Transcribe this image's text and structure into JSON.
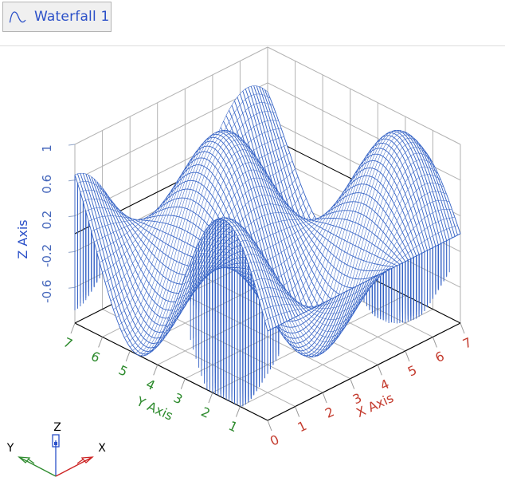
{
  "tab": {
    "label": "Waterfall 1",
    "icon": "sine-wave-icon"
  },
  "axes": {
    "x": {
      "title": "X Axis",
      "color": "#c43b2e",
      "tick_labels": [
        "0",
        "1",
        "2",
        "3",
        "4",
        "5",
        "6",
        "7"
      ],
      "tick_values": [
        0,
        1,
        2,
        3,
        4,
        5,
        6,
        7
      ]
    },
    "y": {
      "title": "Y Axis",
      "color": "#2e8b2e",
      "tick_labels": [
        "1",
        "2",
        "3",
        "4",
        "5",
        "6",
        "7"
      ],
      "tick_values": [
        1,
        2,
        3,
        4,
        5,
        6,
        7
      ]
    },
    "z": {
      "title": "Z Axis",
      "color": "#2b50c8",
      "tick_labels": [
        "1",
        "0.6",
        "0.2",
        "-0.2",
        "-0.6"
      ],
      "tick_values": [
        1,
        0.6,
        0.2,
        -0.2,
        -0.6
      ]
    }
  },
  "triad": {
    "x_label": "X",
    "y_label": "Y",
    "z_label": "Z",
    "x_color": "#cc2222",
    "y_color": "#2e8b2e",
    "z_color": "#2b50c8",
    "label_color": "#000000"
  },
  "colors": {
    "mesh": "#3462c5",
    "grid": "#b2b2b2",
    "frame": "#000000",
    "tick_line": "#9a9a9a",
    "z_tick_line": "#8fa3c8",
    "background": "#ffffff"
  },
  "chart_data": {
    "type": "area",
    "subtype": "3d-waterfall-surface",
    "title": "Waterfall 1",
    "surface_formula": "z = cos(x) * sin(y)",
    "x_range": [
      0,
      7
    ],
    "y_range": [
      0,
      7
    ],
    "z_range": [
      -1,
      1
    ],
    "slice_step": 0.1,
    "sample_step": 0.1,
    "x_ticks": [
      0,
      1,
      2,
      3,
      4,
      5,
      6,
      7
    ],
    "y_ticks": [
      1,
      2,
      3,
      4,
      5,
      6,
      7
    ],
    "z_ticks": [
      1,
      0.6,
      0.2,
      -0.2,
      -0.6
    ],
    "wall_grid_z_levels": [
      0.6,
      0.2,
      -0.2,
      -0.6
    ],
    "zero_plane_level": 0,
    "grid": "on",
    "legend": "none",
    "peaks": [
      {
        "x": 0,
        "y": 1.57,
        "z": 1
      },
      {
        "x": 3.14,
        "y": 4.71,
        "z": 1
      },
      {
        "x": 6.28,
        "y": 1.57,
        "z": 1
      }
    ],
    "valleys": [
      {
        "x": 3.14,
        "y": 1.57,
        "z": -1
      },
      {
        "x": 0,
        "y": 4.71,
        "z": -1
      },
      {
        "x": 6.28,
        "y": 4.71,
        "z": -1
      }
    ]
  }
}
